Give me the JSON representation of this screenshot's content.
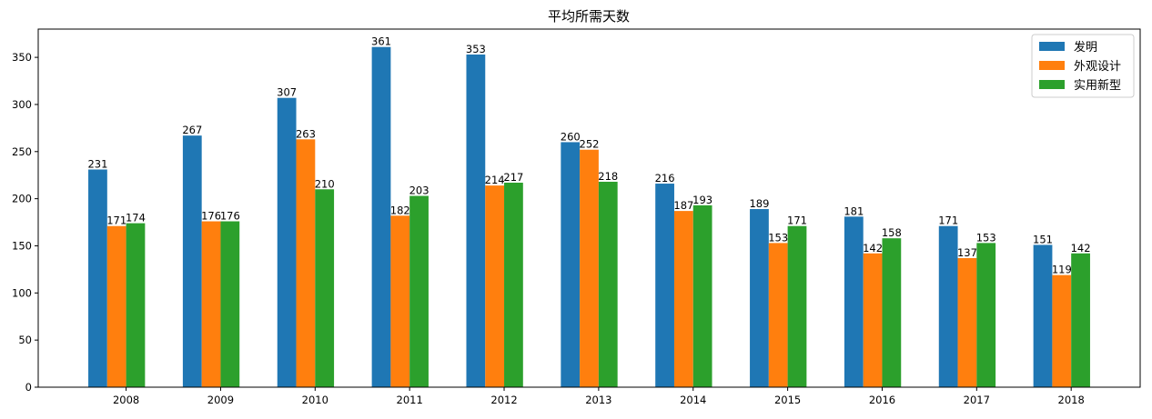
{
  "chart_data": {
    "type": "bar",
    "title": "平均所需天数",
    "xlabel": "",
    "ylabel": "",
    "categories": [
      "2008",
      "2009",
      "2010",
      "2011",
      "2012",
      "2013",
      "2014",
      "2015",
      "2016",
      "2017",
      "2018"
    ],
    "series": [
      {
        "name": "发明",
        "color": "#1f77b4",
        "values": [
          231,
          267,
          307,
          361,
          353,
          260,
          216,
          189,
          181,
          171,
          151
        ]
      },
      {
        "name": "外观设计",
        "color": "#ff7f0e",
        "values": [
          171,
          176,
          263,
          182,
          214,
          252,
          187,
          153,
          142,
          137,
          119
        ]
      },
      {
        "name": "实用新型",
        "color": "#2ca02c",
        "values": [
          174,
          176,
          210,
          203,
          217,
          218,
          193,
          171,
          158,
          153,
          142
        ]
      }
    ],
    "ylim": [
      0,
      380
    ],
    "yticks": [
      "0",
      "50",
      "100",
      "150",
      "200",
      "250",
      "300",
      "350"
    ],
    "grid": false,
    "legend_position": "top-right",
    "data_labels": true
  }
}
